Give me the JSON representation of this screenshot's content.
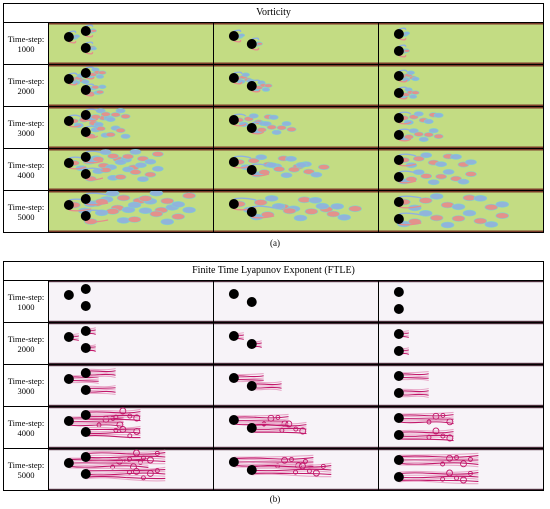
{
  "panel_a": {
    "title": "Vorticity",
    "caption": "(a)",
    "colors": {
      "background": "#c3dc83",
      "positive": "#e58f8c",
      "negative": "#8fb2e0",
      "cyan": "#7fd3cf",
      "walls": "#7a3a2a"
    }
  },
  "panel_b": {
    "title": "Finite Time Lyapunov Exponent (FTLE)",
    "caption": "(b)",
    "colors": {
      "background": "#f7f3f8",
      "ridge": "#c2186b",
      "ridge_light": "#e8a8c8",
      "walls": "#4a2b3a"
    }
  },
  "rows": [
    {
      "label": "Time-step:",
      "step": "1000",
      "stage": 1
    },
    {
      "label": "Time-step:",
      "step": "2000",
      "stage": 2
    },
    {
      "label": "Time-step:",
      "step": "3000",
      "stage": 3
    },
    {
      "label": "Time-step:",
      "step": "4000",
      "stage": 4
    },
    {
      "label": "Time-step:",
      "step": "5000",
      "stage": 5
    }
  ],
  "configurations": [
    "three-cylinders-triangle",
    "two-cylinders-staggered",
    "two-cylinders-tandem"
  ]
}
